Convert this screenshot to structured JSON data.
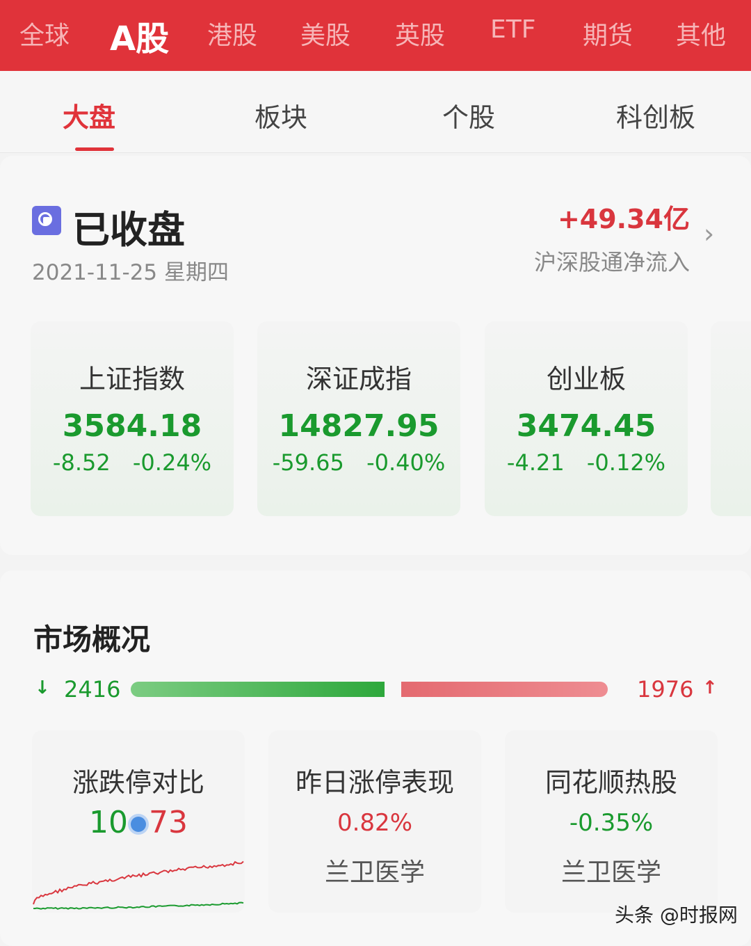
{
  "market_tabs": [
    {
      "label": "全球"
    },
    {
      "label": "A股",
      "active": true
    },
    {
      "label": "港股"
    },
    {
      "label": "美股"
    },
    {
      "label": "英股"
    },
    {
      "label": "ETF"
    },
    {
      "label": "期货"
    },
    {
      "label": "其他"
    }
  ],
  "sub_tabs": [
    {
      "label": "大盘",
      "active": true
    },
    {
      "label": "板块"
    },
    {
      "label": "个股"
    },
    {
      "label": "科创板"
    }
  ],
  "status": {
    "title": "已收盘",
    "date": "2021-11-25 星期四",
    "flow_value": "+49.34亿",
    "flow_label": "沪深股通净流入"
  },
  "indices": [
    {
      "name": "上证指数",
      "value": "3584.18",
      "change": "-8.52",
      "pct": "-0.24%"
    },
    {
      "name": "深证成指",
      "value": "14827.95",
      "change": "-59.65",
      "pct": "-0.40%"
    },
    {
      "name": "创业板",
      "value": "3474.45",
      "change": "-4.21",
      "pct": "-0.12%"
    }
  ],
  "overview": {
    "title": "市场概况",
    "down_count": "2416",
    "up_count": "1976",
    "down_fraction": 0.55
  },
  "cards": {
    "limit": {
      "title": "涨跌停对比",
      "down": "10",
      "up": "73"
    },
    "yesterday": {
      "title": "昨日涨停表现",
      "pct": "0.82%",
      "stock": "兰卫医学"
    },
    "hot": {
      "title": "同花顺热股",
      "pct": "-0.35%",
      "stock": "兰卫医学"
    }
  },
  "watermark": "头条 @时报网",
  "colors": {
    "brand": "#e0333a",
    "up": "#d9363e",
    "down": "#1a9a2e"
  }
}
